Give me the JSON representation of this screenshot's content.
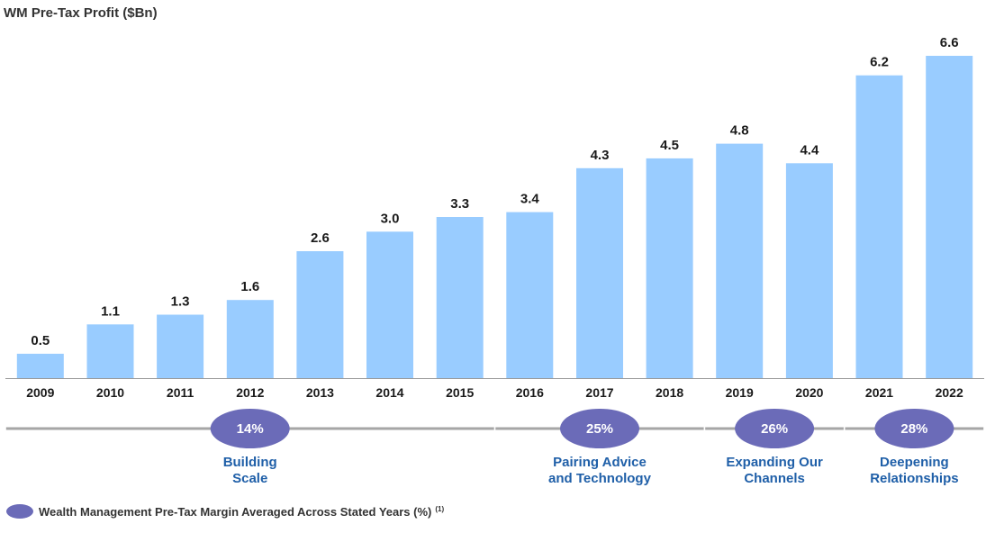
{
  "chart_data": {
    "type": "bar",
    "title": "WM Pre-Tax Profit ($Bn)",
    "categories": [
      "2009",
      "2010",
      "2011",
      "2012",
      "2013",
      "2014",
      "2015",
      "2016",
      "2017",
      "2018",
      "2019",
      "2020",
      "2021",
      "2022"
    ],
    "values": [
      0.5,
      1.1,
      1.3,
      1.6,
      2.6,
      3.0,
      3.3,
      3.4,
      4.3,
      4.5,
      4.8,
      4.4,
      6.2,
      6.6
    ],
    "value_labels": [
      "0.5",
      "1.1",
      "1.3",
      "1.6",
      "2.6",
      "3.0",
      "3.3",
      "3.4",
      "4.3",
      "4.5",
      "4.8",
      "4.4",
      "6.2",
      "6.6"
    ],
    "ylim": [
      0,
      6.6
    ],
    "grid": false,
    "bar_color": "#99ccff",
    "axis_color": "#999999",
    "phases": [
      {
        "margin": "14%",
        "label_lines": [
          "Building",
          "Scale"
        ],
        "start": "2009",
        "end": "2015"
      },
      {
        "margin": "25%",
        "label_lines": [
          "Pairing Advice",
          "and Technology"
        ],
        "start": "2016",
        "end": "2018"
      },
      {
        "margin": "26%",
        "label_lines": [
          "Expanding Our",
          "Channels"
        ],
        "start": "2019",
        "end": "2020"
      },
      {
        "margin": "28%",
        "label_lines": [
          "Deepening",
          "Relationships"
        ],
        "start": "2021",
        "end": "2022"
      }
    ],
    "phase_color": "#6b6bb8",
    "phase_line_color": "#a6a6a6",
    "phase_text_color": "#1f5fa8",
    "legend": {
      "text": "Wealth Management Pre-Tax Margin Averaged Across Stated Years (%)",
      "footnote": "(1)",
      "placement": "bottom-left"
    }
  }
}
